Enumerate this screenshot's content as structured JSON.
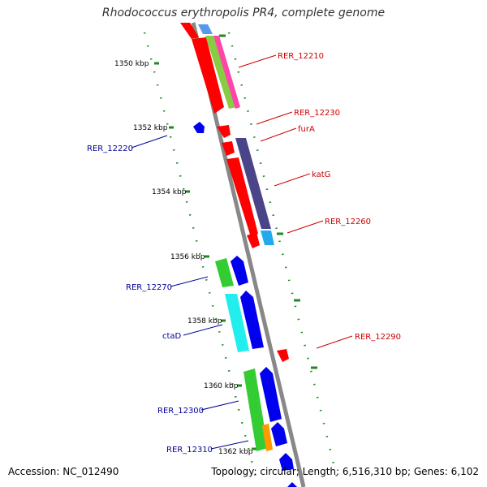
{
  "title": "Rhodococcus erythropolis PR4, complete genome",
  "accession": "Accession: NC_012490",
  "topology": "Topology: circular; Length: 6,516,310 bp; Genes: 6,102",
  "colors": {
    "backbone": "#888888",
    "tick": "#228822",
    "label_forward": "#cc0000",
    "label_reverse": "#000099",
    "red": "#ff0000",
    "blue": "#0000ee",
    "green": "#33cc33",
    "cyan": "#22eeee",
    "purple": "#4a4488",
    "sky": "#22aaee",
    "orange": "#ff9900"
  },
  "kbp_labels": [
    "1350 kbp",
    "1352 kbp",
    "1354 kbp",
    "1356 kbp",
    "1358 kbp",
    "1360 kbp",
    "1362 kbp"
  ],
  "gene_labels": {
    "forward": [
      "RER_12210",
      "RER_12230",
      "furA",
      "katG",
      "RER_12260",
      "RER_12290"
    ],
    "reverse": [
      "RER_12220",
      "RER_12270",
      "ctaD",
      "RER_12300",
      "RER_12310"
    ]
  }
}
